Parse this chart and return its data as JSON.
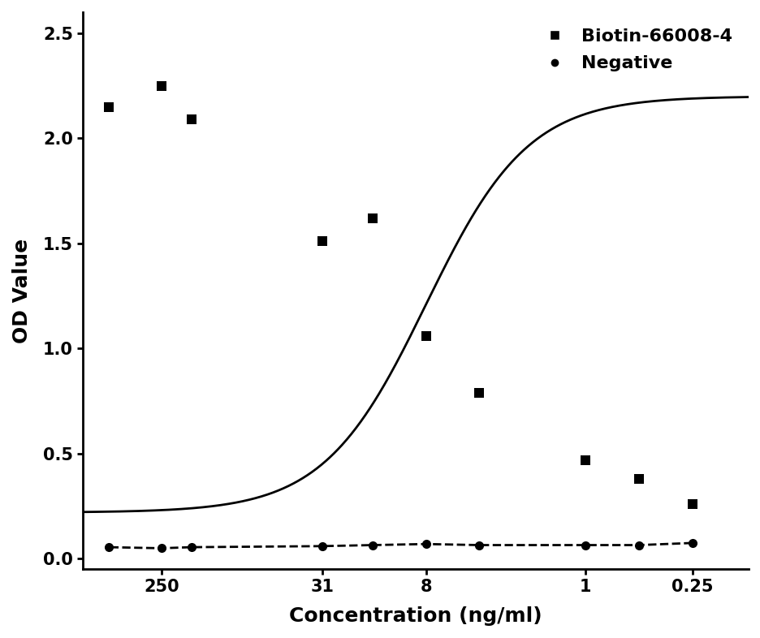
{
  "title": "",
  "xlabel": "Concentration (ng/ml)",
  "ylabel": "OD Value",
  "xlim_log": [
    0.12,
    700
  ],
  "ylim": [
    -0.05,
    2.6
  ],
  "yticks": [
    0.0,
    0.5,
    1.0,
    1.5,
    2.0,
    2.5
  ],
  "xtick_labels": [
    "250",
    "31",
    "8",
    "1",
    "0.25"
  ],
  "xtick_values": [
    250,
    31,
    8,
    1,
    0.25
  ],
  "biotin_x": [
    500,
    250,
    170,
    31,
    16,
    8,
    4,
    1,
    0.5,
    0.25
  ],
  "biotin_y": [
    2.15,
    2.25,
    2.09,
    1.51,
    1.62,
    1.06,
    0.79,
    0.47,
    0.38,
    0.26
  ],
  "negative_x": [
    500,
    250,
    170,
    31,
    16,
    8,
    4,
    1,
    0.5,
    0.25
  ],
  "negative_y": [
    0.055,
    0.05,
    0.055,
    0.06,
    0.065,
    0.07,
    0.065,
    0.065,
    0.065,
    0.075
  ],
  "curve_color": "#000000",
  "scatter_color": "#000000",
  "neg_color": "#000000",
  "legend_label_biotin": "Biotin-66008-4",
  "legend_label_neg": "Negative",
  "background_color": "#ffffff",
  "font_size_axis_label": 18,
  "font_size_tick": 15,
  "font_size_legend": 16,
  "line_width": 2.0,
  "marker_size": 8
}
